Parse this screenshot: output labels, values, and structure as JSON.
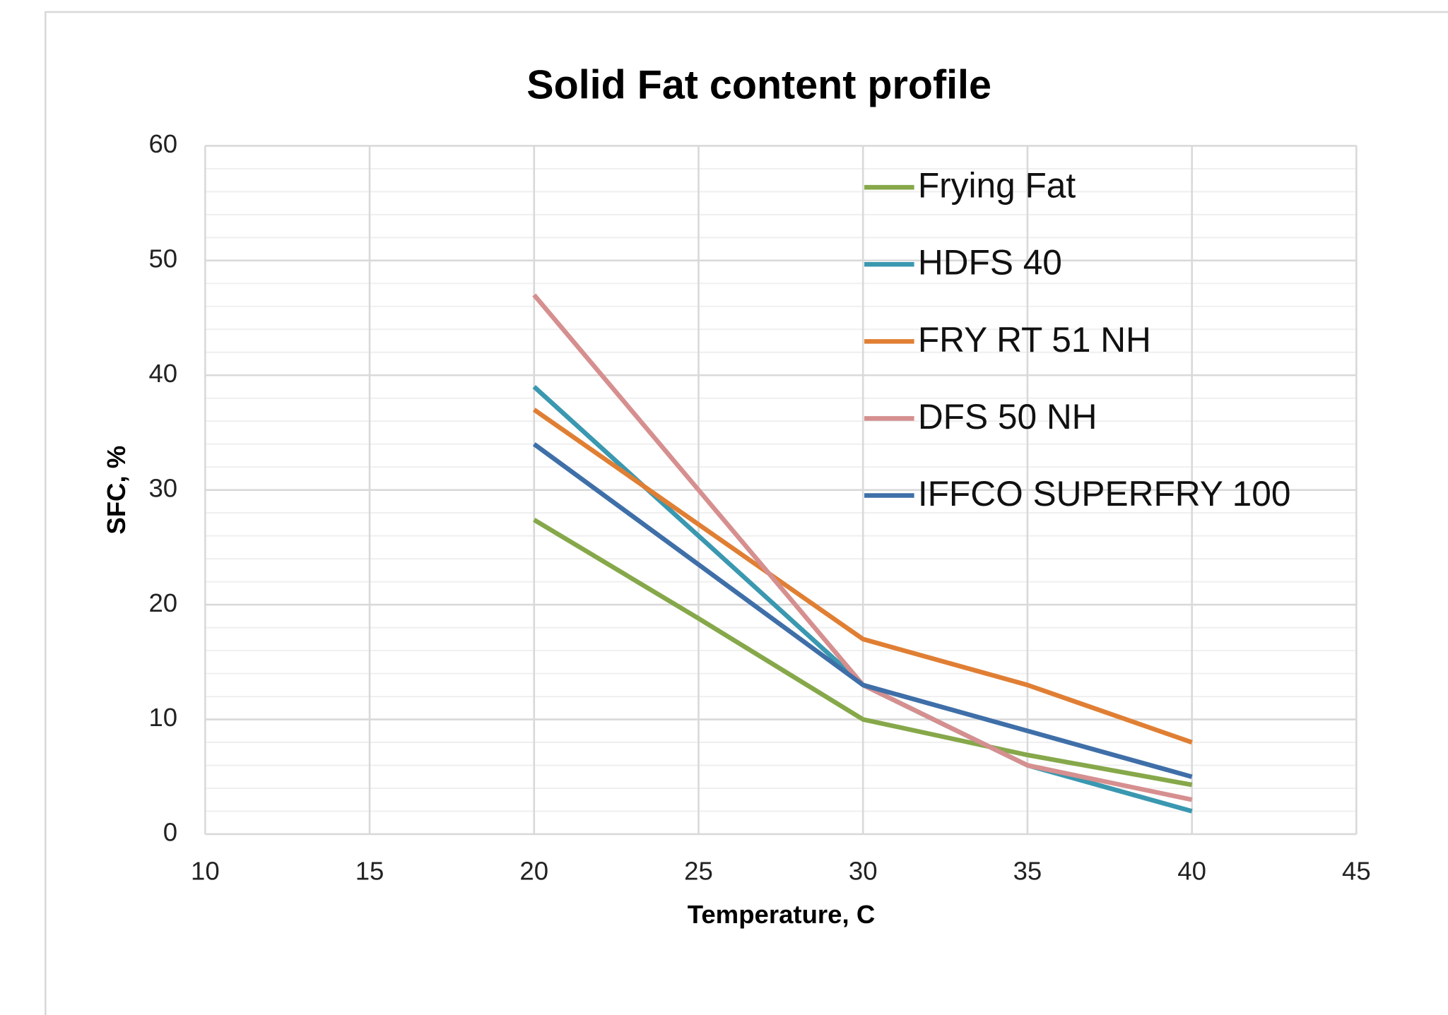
{
  "chart_data": {
    "type": "line",
    "title": "Solid Fat content profile",
    "x_label": "Temperature, C",
    "y_label": "SFC, %",
    "x": [
      20,
      25,
      30,
      35,
      40
    ],
    "series": [
      {
        "name": "Frying Fat",
        "color": "#86a84a",
        "values": [
          27.4,
          18.8,
          10,
          6.9,
          4.3
        ]
      },
      {
        "name": "HDFS 40",
        "color": "#3a98b0",
        "values": [
          39,
          26,
          13,
          6,
          2
        ]
      },
      {
        "name": "FRY RT 51 NH",
        "color": "#e07f34",
        "values": [
          37,
          27,
          17,
          13,
          8
        ]
      },
      {
        "name": "DFS 50 NH",
        "color": "#d68f8f",
        "values": [
          47,
          30,
          13,
          6,
          3
        ]
      },
      {
        "name": "IFFCO SUPERFRY 100",
        "color": "#3f6fa8",
        "values": [
          34,
          23.5,
          13,
          9,
          5
        ]
      }
    ],
    "xlim": [
      10,
      45
    ],
    "xticks": [
      10,
      15,
      20,
      25,
      30,
      35,
      40,
      45
    ],
    "ylim": [
      0,
      60
    ],
    "yticks": [
      0,
      10,
      20,
      30,
      40,
      50,
      60
    ],
    "grid": true,
    "minor_grid": true,
    "legend": "upper right"
  }
}
